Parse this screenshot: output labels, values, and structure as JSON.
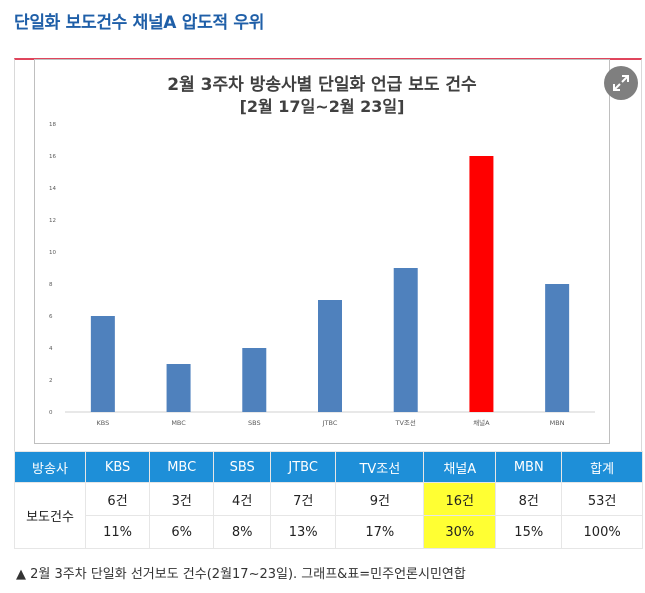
{
  "headline": "단일화 보도건수 채널A 압도적 우위",
  "expand_icon": "expand-arrows-icon",
  "chart_data": {
    "type": "bar",
    "title": "2월 3주차 방송사별 단일화 언급 보도 건수",
    "subtitle": "[2월 17일~2월 23일]",
    "categories": [
      "KBS",
      "MBC",
      "SBS",
      "JTBC",
      "TV조선",
      "채널A",
      "MBN"
    ],
    "values": [
      6,
      3,
      4,
      7,
      9,
      16,
      8
    ],
    "colors": [
      "#4f81bd",
      "#4f81bd",
      "#4f81bd",
      "#4f81bd",
      "#4f81bd",
      "#ff0000",
      "#4f81bd"
    ],
    "yticks": [
      0,
      2,
      4,
      6,
      8,
      10,
      12,
      14,
      16,
      18
    ],
    "ylim": [
      0,
      18
    ],
    "xlabel": "",
    "ylabel": "",
    "grid": false
  },
  "table": {
    "header": [
      "방송사",
      "KBS",
      "MBC",
      "SBS",
      "JTBC",
      "TV조선",
      "채널A",
      "MBN",
      "합계"
    ],
    "row_label": "보도건수",
    "counts": [
      "6건",
      "3건",
      "4건",
      "7건",
      "9건",
      "16건",
      "8건",
      "53건"
    ],
    "percents": [
      "11%",
      "6%",
      "8%",
      "13%",
      "17%",
      "30%",
      "15%",
      "100%"
    ]
  },
  "caption": "▲ 2월 3주차 단일화 선거보도 건수(2월17~23일). 그래프&표=민주언론시민연합"
}
